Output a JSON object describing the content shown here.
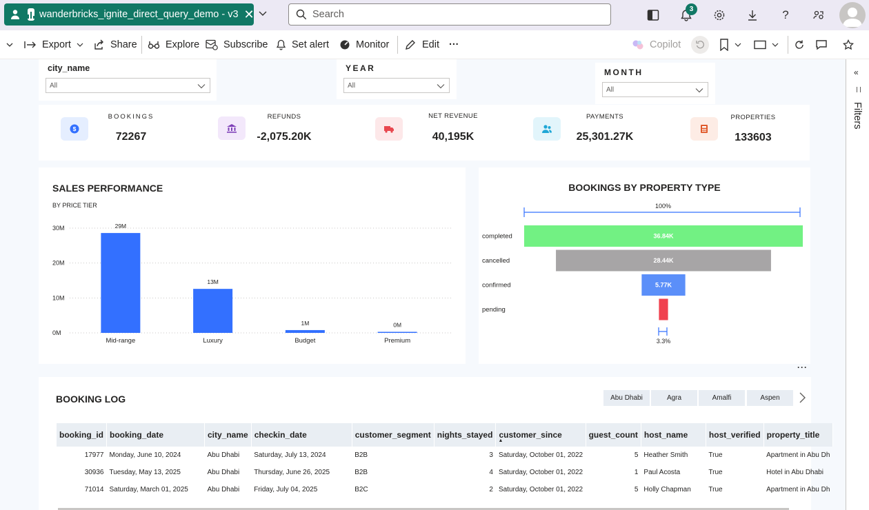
{
  "app": {
    "report_title": "wanderbricks_ignite_direct_query_demo - v3",
    "search_placeholder": "Search",
    "notification_count": "3"
  },
  "toolbar": {
    "export": "Export",
    "share": "Share",
    "explore": "Explore",
    "subscribe": "Subscribe",
    "set_alert": "Set alert",
    "monitor": "Monitor",
    "edit": "Edit",
    "more": "···",
    "copilot": "Copilot"
  },
  "filters_pane": {
    "label": "Filters"
  },
  "slicers": {
    "city": {
      "title": "city_name",
      "value": "All"
    },
    "year": {
      "title": "YEAR",
      "value": "All"
    },
    "month": {
      "title": "MONTH",
      "value": "All"
    }
  },
  "kpis": [
    {
      "label": "BOOKINGS",
      "value": "72267",
      "color": "#3370ff",
      "bg": "#e5eeff"
    },
    {
      "label": "REFUNDS",
      "value": "-2,075.20K",
      "color": "#7e3fb7",
      "bg": "#f3e8fb"
    },
    {
      "label": "NET REVENUE",
      "value": "40,195K",
      "color": "#e8474f",
      "bg": "#fde8e9"
    },
    {
      "label": "PAYMENTS",
      "value": "25,301.27K",
      "color": "#1fa7d6",
      "bg": "#e2f5fb"
    },
    {
      "label": "PROPERTIES",
      "value": "133603",
      "color": "#e05a2b",
      "bg": "#fdece5"
    }
  ],
  "sales_chart": {
    "title": "SALES PERFORMANCE",
    "subtitle": "BY  PRICE TIER",
    "chart_data": {
      "type": "bar",
      "title": "SALES PERFORMANCE",
      "subtitle": "BY  PRICE TIER",
      "categories": [
        "Mid-range",
        "Luxury",
        "Budget",
        "Premium"
      ],
      "values": [
        28.6,
        12.6,
        0.8,
        0.2
      ],
      "data_labels": [
        "29M",
        "13M",
        "1M",
        "0M"
      ],
      "y_ticks": [
        "0M",
        "10M",
        "20M",
        "30M"
      ],
      "ylim": [
        0,
        30
      ],
      "unit": "M",
      "color": "#3370ff"
    }
  },
  "funnel_chart": {
    "title": "BOOKINGS BY PROPERTY TYPE",
    "top_pct": "100%",
    "bottom_pct": "3.3%",
    "chart_data": {
      "type": "bar",
      "title": "BOOKINGS BY PROPERTY TYPE",
      "categories": [
        "completed",
        "cancelled",
        "confirmed",
        "pending"
      ],
      "values": [
        36.84,
        28.44,
        5.77,
        1.2
      ],
      "data_labels": [
        "36.84K",
        "28.44K",
        "5.77K",
        ""
      ],
      "colors": [
        "#72f183",
        "#a7a5a6",
        "#5b8ff9",
        "#f0414f"
      ],
      "unit": "K"
    }
  },
  "booking_log": {
    "title": "BOOKING LOG",
    "chips": [
      "Abu Dhabi",
      "Agra",
      "Amalfi",
      "Aspen"
    ],
    "columns": [
      "booking_id",
      "booking_date",
      "city_name",
      "checkin_date",
      "customer_segment",
      "nights_stayed",
      "customer_since",
      "guest_count",
      "host_name",
      "host_verified",
      "property_title"
    ],
    "rows": [
      [
        "17977",
        "Monday, June 10, 2024",
        "Abu Dhabi",
        "Saturday, July 13, 2024",
        "B2B",
        "3",
        "Saturday, October 01, 2022",
        "5",
        "Heather Smith",
        "True",
        "Apartment in Abu Dh"
      ],
      [
        "30936",
        "Tuesday, May 13, 2025",
        "Abu Dhabi",
        "Thursday, June 26, 2025",
        "B2B",
        "4",
        "Saturday, October 01, 2022",
        "1",
        "Paul Acosta",
        "True",
        "Hotel in Abu Dhabi"
      ],
      [
        "71014",
        "Saturday, March 01, 2025",
        "Abu Dhabi",
        "Friday, July 04, 2025",
        "B2C",
        "2",
        "Saturday, October 01, 2022",
        "5",
        "Holly Chapman",
        "True",
        "Apartment in Abu Dh"
      ]
    ]
  }
}
